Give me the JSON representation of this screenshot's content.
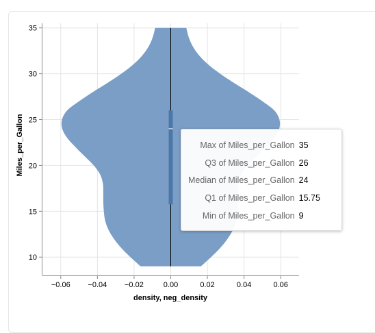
{
  "chart_data": {
    "type": "violin",
    "xlabel": "density, neg_density",
    "ylabel": "Miles_per_Gallon",
    "xlim": [
      -0.07,
      0.07
    ],
    "ylim": [
      8,
      35.5
    ],
    "x_ticks": [
      -0.06,
      -0.04,
      -0.02,
      0.0,
      0.02,
      0.04,
      0.06
    ],
    "x_tick_labels": [
      "−0.06",
      "−0.04",
      "−0.02",
      "0.00",
      "0.02",
      "0.04",
      "0.06"
    ],
    "y_ticks": [
      10,
      15,
      20,
      25,
      30,
      35
    ],
    "y_tick_labels": [
      "10",
      "15",
      "20",
      "25",
      "30",
      "35"
    ],
    "grid": true,
    "violin_color": "#7b9ec6",
    "box_color": "#4c78a8",
    "line_color": "#000000",
    "density": [
      {
        "y": 9,
        "d": 0.0165
      },
      {
        "y": 10,
        "d": 0.022
      },
      {
        "y": 11,
        "d": 0.027
      },
      {
        "y": 12,
        "d": 0.031
      },
      {
        "y": 13,
        "d": 0.034
      },
      {
        "y": 14,
        "d": 0.0358
      },
      {
        "y": 15,
        "d": 0.0365
      },
      {
        "y": 16,
        "d": 0.0368
      },
      {
        "y": 17,
        "d": 0.0368
      },
      {
        "y": 18,
        "d": 0.037
      },
      {
        "y": 19,
        "d": 0.0385
      },
      {
        "y": 20,
        "d": 0.042
      },
      {
        "y": 21,
        "d": 0.047
      },
      {
        "y": 22,
        "d": 0.052
      },
      {
        "y": 23,
        "d": 0.0565
      },
      {
        "y": 24,
        "d": 0.0592
      },
      {
        "y": 25,
        "d": 0.0593
      },
      {
        "y": 26,
        "d": 0.0565
      },
      {
        "y": 27,
        "d": 0.05
      },
      {
        "y": 28,
        "d": 0.0425
      },
      {
        "y": 29,
        "d": 0.0345
      },
      {
        "y": 30,
        "d": 0.027
      },
      {
        "y": 31,
        "d": 0.0205
      },
      {
        "y": 32,
        "d": 0.0155
      },
      {
        "y": 33,
        "d": 0.012
      },
      {
        "y": 34,
        "d": 0.0098
      },
      {
        "y": 35,
        "d": 0.0085
      }
    ],
    "box": {
      "min": 9,
      "q1": 15.75,
      "median": 24,
      "q3": 26,
      "max": 35
    }
  },
  "tooltip": {
    "rows": [
      {
        "key": "Max of Miles_per_Gallon",
        "value": "35"
      },
      {
        "key": "Q3 of Miles_per_Gallon",
        "value": "26"
      },
      {
        "key": "Median of Miles_per_Gallon",
        "value": "24"
      },
      {
        "key": "Q1 of Miles_per_Gallon",
        "value": "15.75"
      },
      {
        "key": "Min of Miles_per_Gallon",
        "value": "9"
      }
    ]
  }
}
